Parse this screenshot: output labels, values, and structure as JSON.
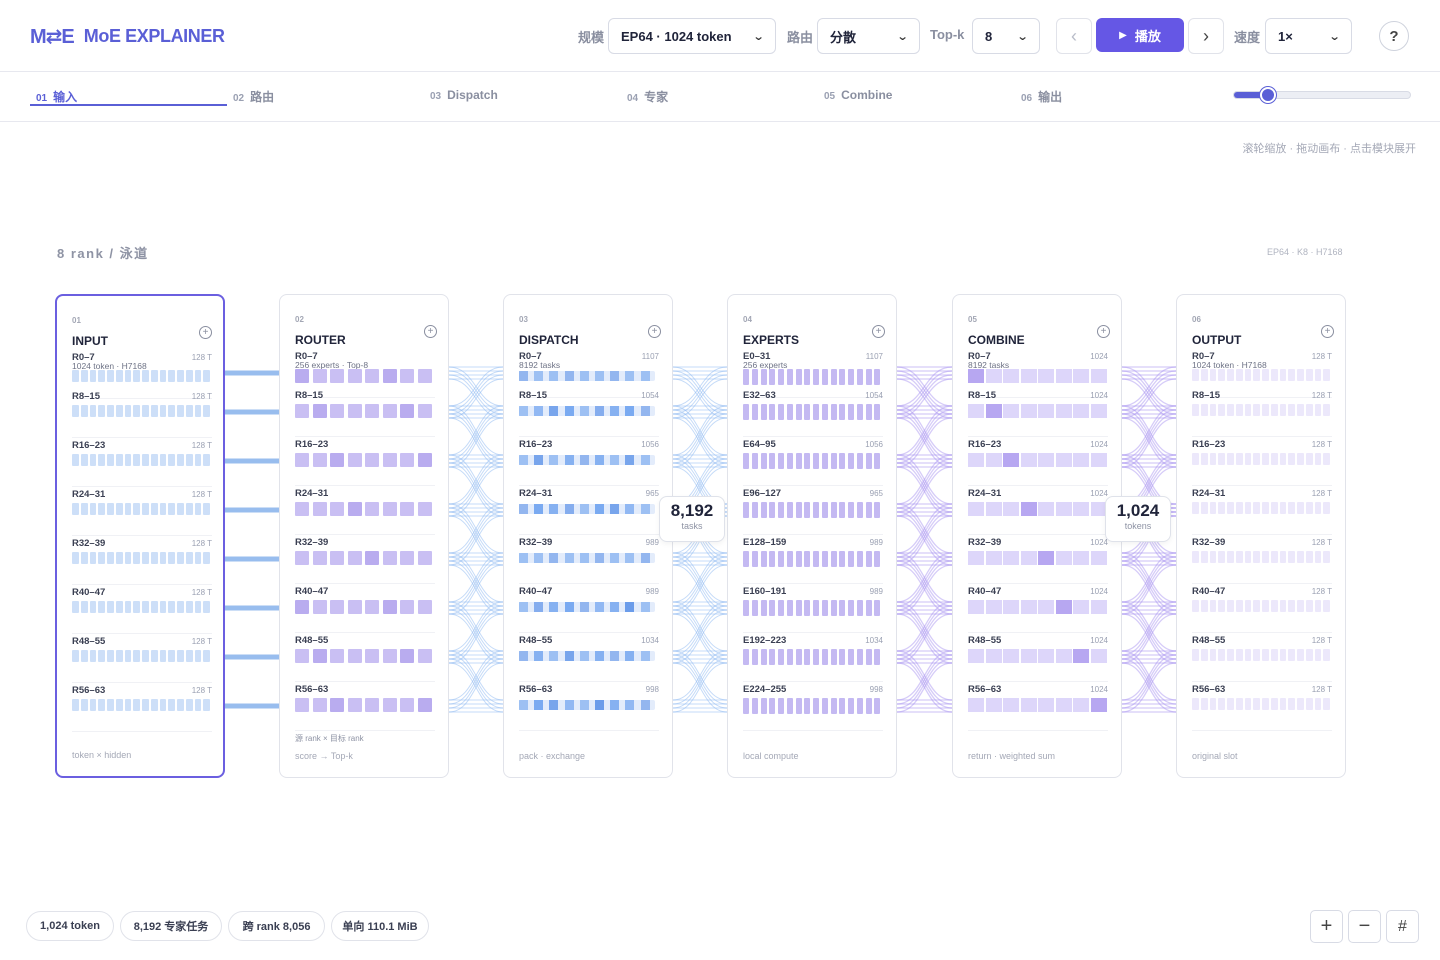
{
  "app": {
    "logo_mark": "M⇄E",
    "title": "MoE EXPLAINER"
  },
  "controls": {
    "scale_label": "规模",
    "scale_value": "EP64 · 1024 token",
    "routing_label": "路由",
    "routing_value": "分散",
    "topk_label": "Top-k",
    "topk_value": "8",
    "play_label": "播放",
    "speed_label": "速度",
    "speed_value": "1×",
    "help_label": "?"
  },
  "tabs": [
    {
      "num": "01",
      "label": "输入"
    },
    {
      "num": "02",
      "label": "路由"
    },
    {
      "num": "03",
      "label": "Dispatch"
    },
    {
      "num": "04",
      "label": "专家"
    },
    {
      "num": "05",
      "label": "Combine"
    },
    {
      "num": "06",
      "label": "输出"
    }
  ],
  "timeline": {
    "progress": 0.15
  },
  "hint": "滚轮缩放 · 拖动画布 · 点击模块展开",
  "lane": {
    "title": "8 rank / 泳道",
    "meta": "EP64 · K8 · H7168"
  },
  "cards": [
    {
      "num": "01",
      "title": "INPUT",
      "sub": "1024 token · H7168",
      "foot": "token × hidden",
      "note": "",
      "rows": [
        {
          "label": "R0–7",
          "count": "128 T"
        },
        {
          "label": "R8–15",
          "count": "128 T"
        },
        {
          "label": "R16–23",
          "count": "128 T"
        },
        {
          "label": "R24–31",
          "count": "128 T"
        },
        {
          "label": "R32–39",
          "count": "128 T"
        },
        {
          "label": "R40–47",
          "count": "128 T"
        },
        {
          "label": "R48–55",
          "count": "128 T"
        },
        {
          "label": "R56–63",
          "count": "128 T"
        }
      ]
    },
    {
      "num": "02",
      "title": "ROUTER",
      "sub": "256 experts · Top-8",
      "foot": "score → Top-k",
      "note": "源 rank × 目标 rank",
      "rows": [
        {
          "label": "R0–7",
          "count": ""
        },
        {
          "label": "R8–15",
          "count": ""
        },
        {
          "label": "R16–23",
          "count": ""
        },
        {
          "label": "R24–31",
          "count": ""
        },
        {
          "label": "R32–39",
          "count": ""
        },
        {
          "label": "R40–47",
          "count": ""
        },
        {
          "label": "R48–55",
          "count": ""
        },
        {
          "label": "R56–63",
          "count": ""
        }
      ]
    },
    {
      "num": "03",
      "title": "DISPATCH",
      "sub": "8192 tasks",
      "foot": "pack · exchange",
      "note": "",
      "rows": [
        {
          "label": "R0–7",
          "count": "1107"
        },
        {
          "label": "R8–15",
          "count": "1054"
        },
        {
          "label": "R16–23",
          "count": "1056"
        },
        {
          "label": "R24–31",
          "count": "965"
        },
        {
          "label": "R32–39",
          "count": "989"
        },
        {
          "label": "R40–47",
          "count": "989"
        },
        {
          "label": "R48–55",
          "count": "1034"
        },
        {
          "label": "R56–63",
          "count": "998"
        }
      ]
    },
    {
      "num": "04",
      "title": "EXPERTS",
      "sub": "256 experts",
      "foot": "local compute",
      "note": "",
      "rows": [
        {
          "label": "E0–31",
          "count": "1107"
        },
        {
          "label": "E32–63",
          "count": "1054"
        },
        {
          "label": "E64–95",
          "count": "1056"
        },
        {
          "label": "E96–127",
          "count": "965"
        },
        {
          "label": "E128–159",
          "count": "989"
        },
        {
          "label": "E160–191",
          "count": "989"
        },
        {
          "label": "E192–223",
          "count": "1034"
        },
        {
          "label": "E224–255",
          "count": "998"
        }
      ]
    },
    {
      "num": "05",
      "title": "COMBINE",
      "sub": "8192 tasks",
      "foot": "return · weighted sum",
      "note": "",
      "rows": [
        {
          "label": "R0–7",
          "count": "1024"
        },
        {
          "label": "R8–15",
          "count": "1024"
        },
        {
          "label": "R16–23",
          "count": "1024"
        },
        {
          "label": "R24–31",
          "count": "1024"
        },
        {
          "label": "R32–39",
          "count": "1024"
        },
        {
          "label": "R40–47",
          "count": "1024"
        },
        {
          "label": "R48–55",
          "count": "1024"
        },
        {
          "label": "R56–63",
          "count": "1024"
        }
      ]
    },
    {
      "num": "06",
      "title": "OUTPUT",
      "sub": "1024 token · H7168",
      "foot": "original slot",
      "note": "",
      "rows": [
        {
          "label": "R0–7",
          "count": "128 T"
        },
        {
          "label": "R8–15",
          "count": "128 T"
        },
        {
          "label": "R16–23",
          "count": "128 T"
        },
        {
          "label": "R24–31",
          "count": "128 T"
        },
        {
          "label": "R32–39",
          "count": "128 T"
        },
        {
          "label": "R40–47",
          "count": "128 T"
        },
        {
          "label": "R48–55",
          "count": "128 T"
        },
        {
          "label": "R56–63",
          "count": "128 T"
        }
      ]
    }
  ],
  "bubbles": [
    {
      "value": "8,192",
      "unit": "tasks"
    },
    {
      "value": "1,024",
      "unit": "tokens"
    }
  ],
  "stats": [
    "1,024 token",
    "8,192 专家任务",
    "跨 rank 8,056",
    "单向 110.1 MiB"
  ],
  "zoom": {
    "in": "+",
    "out": "−",
    "fit": "#"
  },
  "colors": {
    "accent": "#5a5fd6",
    "play": "#6557e5",
    "dispatch_flow": "#7fb0f0",
    "combine_flow": "#a48ff0",
    "input_block": "#cddff8",
    "router_block": "#c9bff3",
    "dispatch_block": "#6ea3ef",
    "expert_block": "#c4b9f2",
    "output_block": "#ece8fb"
  }
}
